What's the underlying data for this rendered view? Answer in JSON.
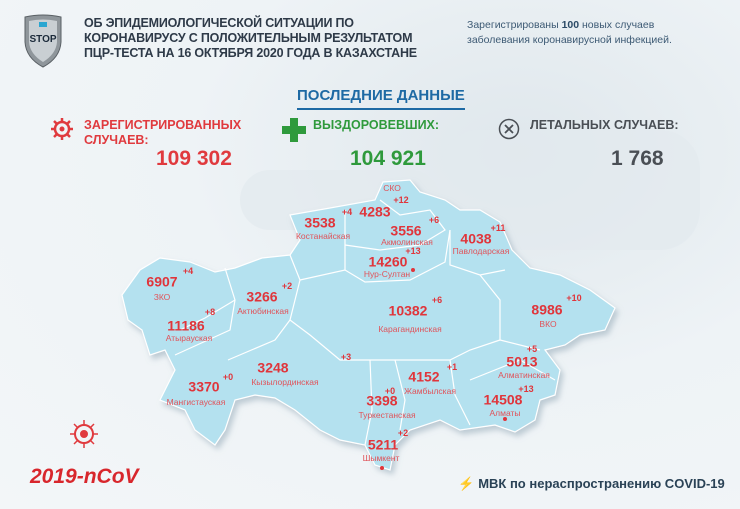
{
  "header": {
    "logo_text": "STOP",
    "title_lines": [
      "ОБ ЭПИДЕМИОЛОГИЧЕСКОЙ СИТУАЦИИ ПО",
      "КОРОНАВИРУСУ С ПОЛОЖИТЕЛЬНЫМ РЕЗУЛЬТАТОМ",
      "ПЦР-ТЕСТА НА 16 ОКТЯБРЯ 2020 ГОДА В КАЗАХСТАНЕ"
    ],
    "note_prefix": "Зарегистрированы ",
    "note_count": "100",
    "note_suffix": " новых случаев",
    "note_line2": "заболевания коронавирусной инфекцией."
  },
  "latest_label": "ПОСЛЕДНИЕ ДАННЫЕ",
  "stats": {
    "registered": {
      "label1": "ЗАРЕГИСТРИРОВАННЫХ",
      "label2": "СЛУЧАЕВ:",
      "value": "109 302",
      "icon": "virus-icon",
      "color": "#e03a3e"
    },
    "recovered": {
      "label": "ВЫЗДОРОВЕВШИХ:",
      "value": "104 921",
      "icon": "plus-icon",
      "color": "#2f9a3c"
    },
    "deaths": {
      "label": "ЛЕТАЛЬНЫХ СЛУЧАЕВ:",
      "value": "1 768",
      "icon": "x-circle-icon",
      "color": "#4a4f55"
    }
  },
  "regions": [
    {
      "name": "СКО",
      "cases": "4283",
      "delta": "+12"
    },
    {
      "name": "Костанайская",
      "cases": "3538",
      "delta": "+4"
    },
    {
      "name": "Акмолинская",
      "cases": "3556",
      "delta": "+6"
    },
    {
      "name": "Павлодарская",
      "cases": "4038",
      "delta": "+11"
    },
    {
      "name": "Нур-Султан",
      "cases": "14260",
      "delta": "+13"
    },
    {
      "name": "ЗКО",
      "cases": "6907",
      "delta": "+4"
    },
    {
      "name": "Актюбинская",
      "cases": "3266",
      "delta": "+2"
    },
    {
      "name": "Карагандинская",
      "cases": "10382",
      "delta": "+6"
    },
    {
      "name": "ВКО",
      "cases": "8986",
      "delta": "+10"
    },
    {
      "name": "Атырауская",
      "cases": "11186",
      "delta": "+8"
    },
    {
      "name": "Кызылординская",
      "cases": "3248",
      "delta": "+3"
    },
    {
      "name": "Мангистауская",
      "cases": "3370",
      "delta": "+0"
    },
    {
      "name": "Туркестанская",
      "cases": "3398",
      "delta": "+0"
    },
    {
      "name": "Жамбылская",
      "cases": "4152",
      "delta": "+1"
    },
    {
      "name": "Алматинская",
      "cases": "5013",
      "delta": "+5"
    },
    {
      "name": "Алматы",
      "cases": "14508",
      "delta": "+13"
    },
    {
      "name": "Шымкент",
      "cases": "5211",
      "delta": "+2"
    }
  ],
  "colors": {
    "map": "#b4e1ef",
    "accent": "#1e6aa4",
    "red": "#e03a3e"
  },
  "footer": {
    "ncov": "2019-nCoV",
    "mvk": "МВК по нераспространению COVID-19"
  }
}
